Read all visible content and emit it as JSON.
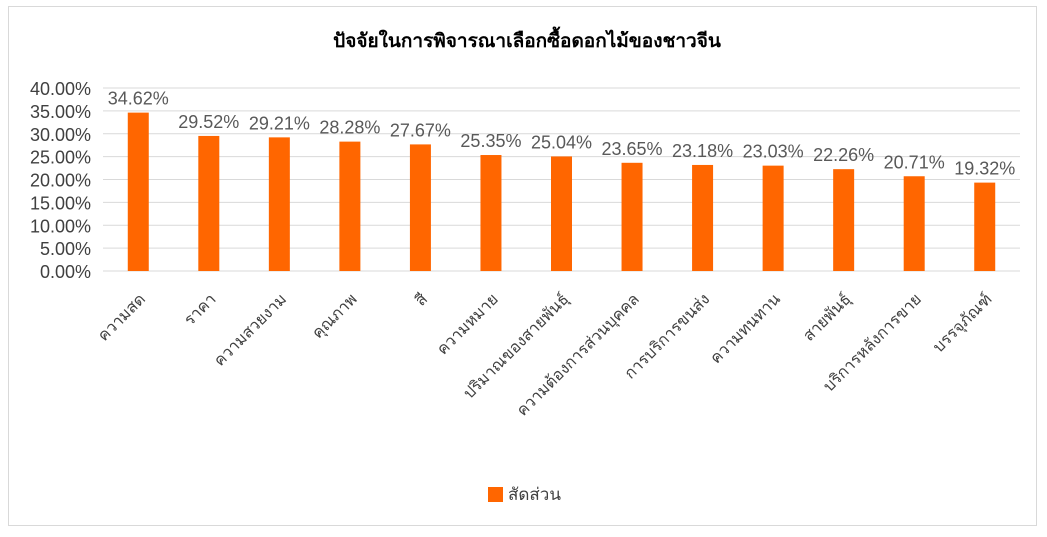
{
  "chart_data": {
    "type": "bar",
    "title": "ปัจจัยในการพิจารณาเลือกซื้อดอกไม้ของชาวจีน",
    "categories": [
      "ความสด",
      "ราคา",
      "ความสวยงาม",
      "คุณภาพ",
      "สี",
      "ความหมาย",
      "ปริมาณของสายพันธุ์",
      "ความต้องการส่วนบุคคล",
      "การบริการขนส่ง",
      "ความทนทาน",
      "สายพันธุ์",
      "บริการหลังการขาย",
      "บรรจุภัณฑ์"
    ],
    "series": [
      {
        "name": "สัดส่วน",
        "values": [
          34.62,
          29.52,
          29.21,
          28.28,
          27.67,
          25.35,
          25.04,
          23.65,
          23.18,
          23.03,
          22.26,
          20.71,
          19.32
        ],
        "labels": [
          "34.62%",
          "29.52%",
          "29.21%",
          "28.28%",
          "27.67%",
          "25.35%",
          "25.04%",
          "23.65%",
          "23.18%",
          "23.03%",
          "22.26%",
          "20.71%",
          "19.32%"
        ]
      }
    ],
    "ylim": [
      0,
      40
    ],
    "yticks": [
      "0.00%",
      "5.00%",
      "10.00%",
      "15.00%",
      "20.00%",
      "25.00%",
      "30.00%",
      "35.00%",
      "40.00%"
    ],
    "grid": true,
    "legend_position": "bottom",
    "color": "#ff6600"
  }
}
